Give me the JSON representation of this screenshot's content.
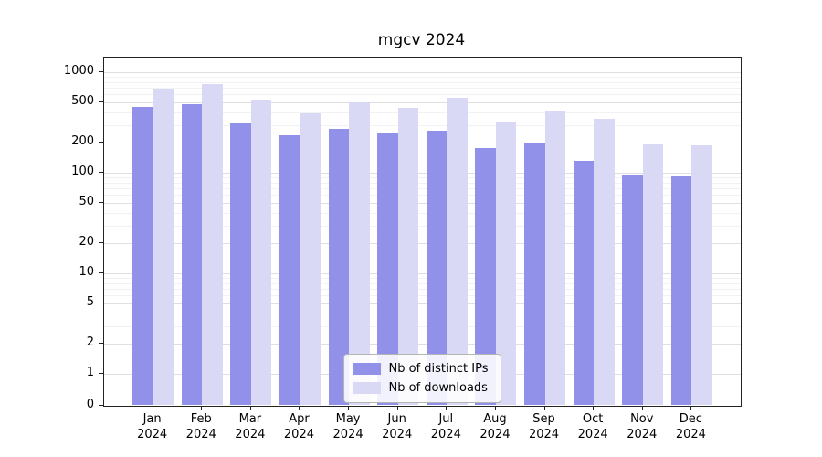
{
  "chart_data": {
    "type": "bar",
    "title": "mgcv 2024",
    "year_label": "2024",
    "categories": [
      "Jan",
      "Feb",
      "Mar",
      "Apr",
      "May",
      "Jun",
      "Jul",
      "Aug",
      "Sep",
      "Oct",
      "Nov",
      "Dec"
    ],
    "series": [
      {
        "name": "Nb of distinct IPs",
        "color": "#9191e9",
        "values": [
          450,
          480,
          310,
          235,
          275,
          250,
          260,
          175,
          200,
          130,
          93,
          92
        ]
      },
      {
        "name": "Nb of downloads",
        "color": "#d9d9f6",
        "values": [
          680,
          760,
          530,
          390,
          505,
          445,
          555,
          320,
          415,
          345,
          190,
          188
        ]
      }
    ],
    "yticks": [
      1000,
      500,
      200,
      100,
      50,
      20,
      10,
      5,
      2,
      1,
      0
    ],
    "minor_gridlines": [
      3,
      4,
      6,
      7,
      8,
      9,
      30,
      40,
      60,
      70,
      80,
      90,
      300,
      400,
      600,
      700,
      800,
      900
    ],
    "scale": "log",
    "ylim": [
      0,
      1000
    ],
    "grid": true,
    "legend_position": "lower center",
    "colors": {
      "major_grid": "#dfdfdf",
      "minor_grid": "#f2f2f2",
      "axis": "#222222"
    }
  }
}
